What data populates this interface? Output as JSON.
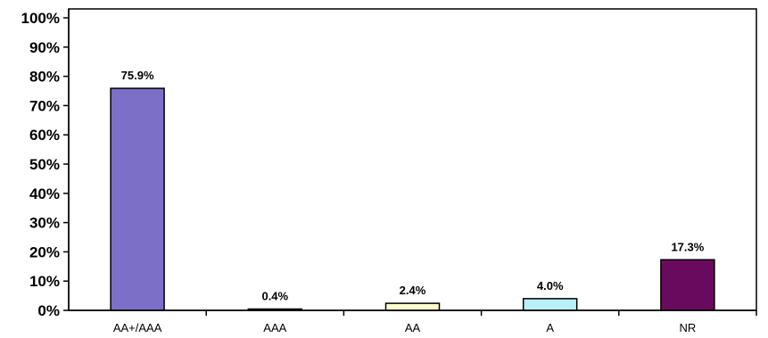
{
  "chart_data": {
    "type": "bar",
    "categories": [
      "AA+/AAA",
      "AAA",
      "AA",
      "A",
      "NR"
    ],
    "values": [
      75.9,
      0.4,
      2.4,
      4.0,
      17.3
    ],
    "data_labels": [
      "75.9%",
      "0.4%",
      "2.4%",
      "4.0%",
      "17.3%"
    ],
    "colors": [
      "#7b6fc8",
      "#e8e8f0",
      "#ffffcc",
      "#b8f0f8",
      "#6a0a5e"
    ],
    "ylim": [
      0,
      100
    ],
    "yticks": [
      0,
      10,
      20,
      30,
      40,
      50,
      60,
      70,
      80,
      90,
      100
    ],
    "ytick_labels": [
      "0%",
      "10%",
      "20%",
      "30%",
      "40%",
      "50%",
      "60%",
      "70%",
      "80%",
      "90%",
      "100%"
    ],
    "title": "",
    "xlabel": "",
    "ylabel": "",
    "grid": false,
    "legend": "none"
  }
}
